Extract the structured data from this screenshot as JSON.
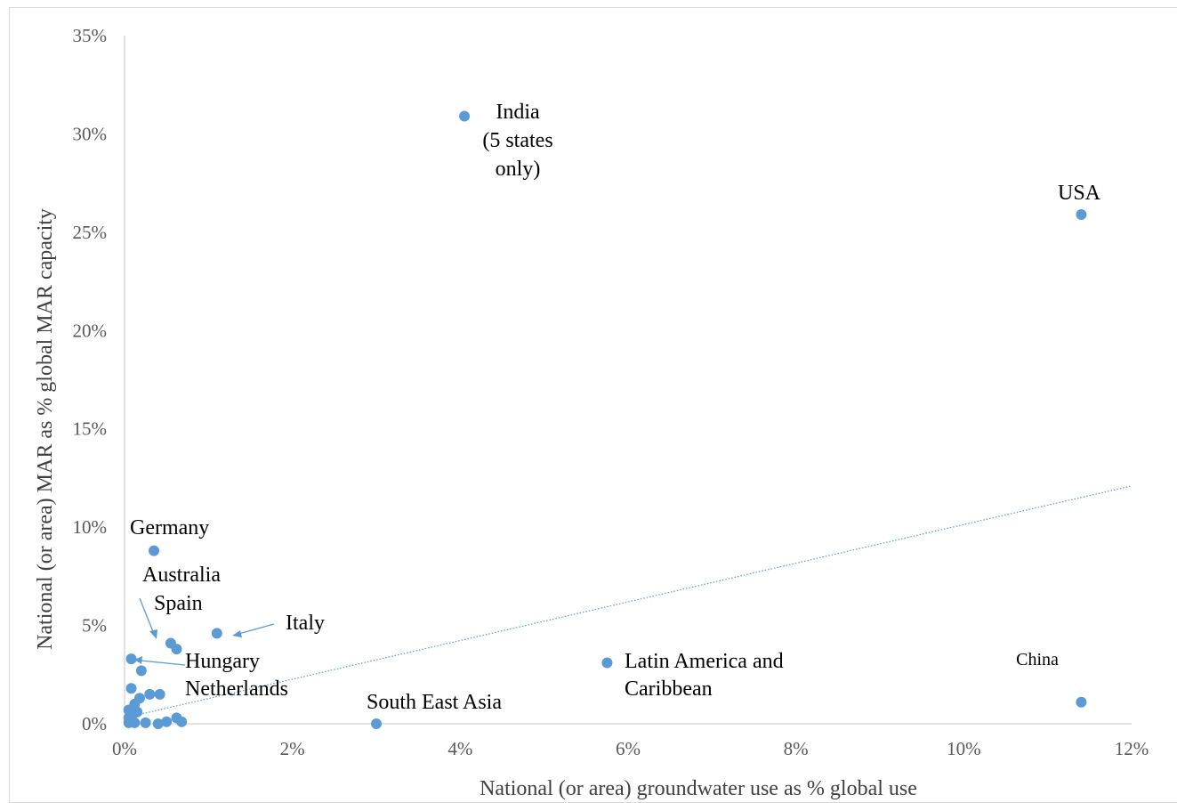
{
  "chart_data": {
    "type": "scatter",
    "xlabel": "National (or area) groundwater use as % global use",
    "ylabel": "National (or area) MAR as % global  MAR capacity",
    "xlim": [
      0,
      12
    ],
    "ylim": [
      0,
      35
    ],
    "x_ticks": [
      "0%",
      "2%",
      "4%",
      "6%",
      "8%",
      "10%",
      "12%"
    ],
    "y_ticks": [
      "0%",
      "5%",
      "10%",
      "15%",
      "20%",
      "25%",
      "30%",
      "35%"
    ],
    "grid": false,
    "marker_color": "#5b9bd5",
    "trendline": {
      "type": "linear",
      "style": "dotted",
      "color": "#5b9bd5",
      "from": [
        0,
        0.3
      ],
      "to": [
        12,
        12.1
      ]
    },
    "points": [
      {
        "x": 4.05,
        "y": 30.9,
        "label": "India (5 states only)"
      },
      {
        "x": 11.4,
        "y": 25.9,
        "label": "USA"
      },
      {
        "x": 11.4,
        "y": 1.1,
        "label": "China"
      },
      {
        "x": 0.35,
        "y": 8.8,
        "label": "Germany"
      },
      {
        "x": 1.1,
        "y": 4.6,
        "label": "Italy"
      },
      {
        "x": 0.55,
        "y": 4.1,
        "label": ""
      },
      {
        "x": 0.62,
        "y": 3.8,
        "label": ""
      },
      {
        "x": 0.08,
        "y": 3.3,
        "label": ""
      },
      {
        "x": 0.2,
        "y": 2.7,
        "label": ""
      },
      {
        "x": 5.75,
        "y": 3.1,
        "label": "Latin America and Caribbean"
      },
      {
        "x": 3.0,
        "y": 0.0,
        "label": "South East Asia"
      },
      {
        "x": 0.08,
        "y": 1.8,
        "label": ""
      },
      {
        "x": 0.3,
        "y": 1.5,
        "label": ""
      },
      {
        "x": 0.42,
        "y": 1.5,
        "label": ""
      },
      {
        "x": 0.18,
        "y": 1.3,
        "label": ""
      },
      {
        "x": 0.12,
        "y": 1.0,
        "label": ""
      },
      {
        "x": 0.05,
        "y": 0.7,
        "label": ""
      },
      {
        "x": 0.15,
        "y": 0.6,
        "label": ""
      },
      {
        "x": 0.1,
        "y": 0.5,
        "label": ""
      },
      {
        "x": 0.05,
        "y": 0.3,
        "label": ""
      },
      {
        "x": 0.08,
        "y": 0.15,
        "label": ""
      },
      {
        "x": 0.05,
        "y": 0.05,
        "label": ""
      },
      {
        "x": 0.12,
        "y": 0.05,
        "label": ""
      },
      {
        "x": 0.25,
        "y": 0.05,
        "label": ""
      },
      {
        "x": 0.4,
        "y": 0.0,
        "label": ""
      },
      {
        "x": 0.5,
        "y": 0.1,
        "label": ""
      },
      {
        "x": 0.62,
        "y": 0.3,
        "label": ""
      },
      {
        "x": 0.68,
        "y": 0.1,
        "label": ""
      }
    ],
    "annotations": {
      "india": [
        "India",
        "(5 states",
        "only)"
      ],
      "usa": "USA",
      "china": "China",
      "germany": "Germany",
      "australia": "Australia",
      "spain": "Spain",
      "italy": "Italy",
      "hungary": "Hungary",
      "netherlands": "Netherlands",
      "latam": [
        "Latin America and",
        "Caribbean"
      ],
      "sea": "South East Asia"
    }
  }
}
